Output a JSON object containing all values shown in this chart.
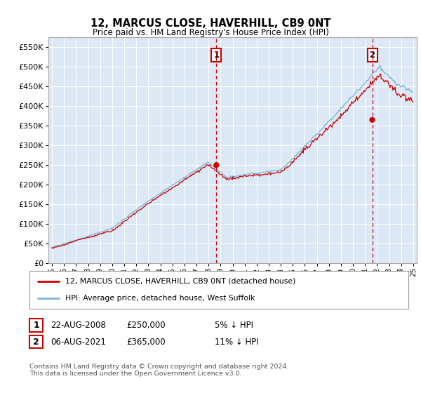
{
  "title": "12, MARCUS CLOSE, HAVERHILL, CB9 0NT",
  "subtitle": "Price paid vs. HM Land Registry's House Price Index (HPI)",
  "ytick_values": [
    0,
    50000,
    100000,
    150000,
    200000,
    250000,
    300000,
    350000,
    400000,
    450000,
    500000,
    550000
  ],
  "ylim": [
    0,
    575000
  ],
  "plot_bg": "#dce8f5",
  "hpi_color": "#7ab4d8",
  "price_color": "#cc0000",
  "vline_color": "#cc0000",
  "sale1_date": 2008.65,
  "sale1_price": 250000,
  "sale1_label": "1",
  "sale2_date": 2021.6,
  "sale2_price": 365000,
  "sale2_label": "2",
  "legend_line1": "12, MARCUS CLOSE, HAVERHILL, CB9 0NT (detached house)",
  "legend_line2": "HPI: Average price, detached house, West Suffolk",
  "table_row1": [
    "1",
    "22-AUG-2008",
    "£250,000",
    "5% ↓ HPI"
  ],
  "table_row2": [
    "2",
    "06-AUG-2021",
    "£365,000",
    "11% ↓ HPI"
  ],
  "footnote": "Contains HM Land Registry data © Crown copyright and database right 2024.\nThis data is licensed under the Open Government Licence v3.0.",
  "xmin": 1995,
  "xmax": 2025
}
